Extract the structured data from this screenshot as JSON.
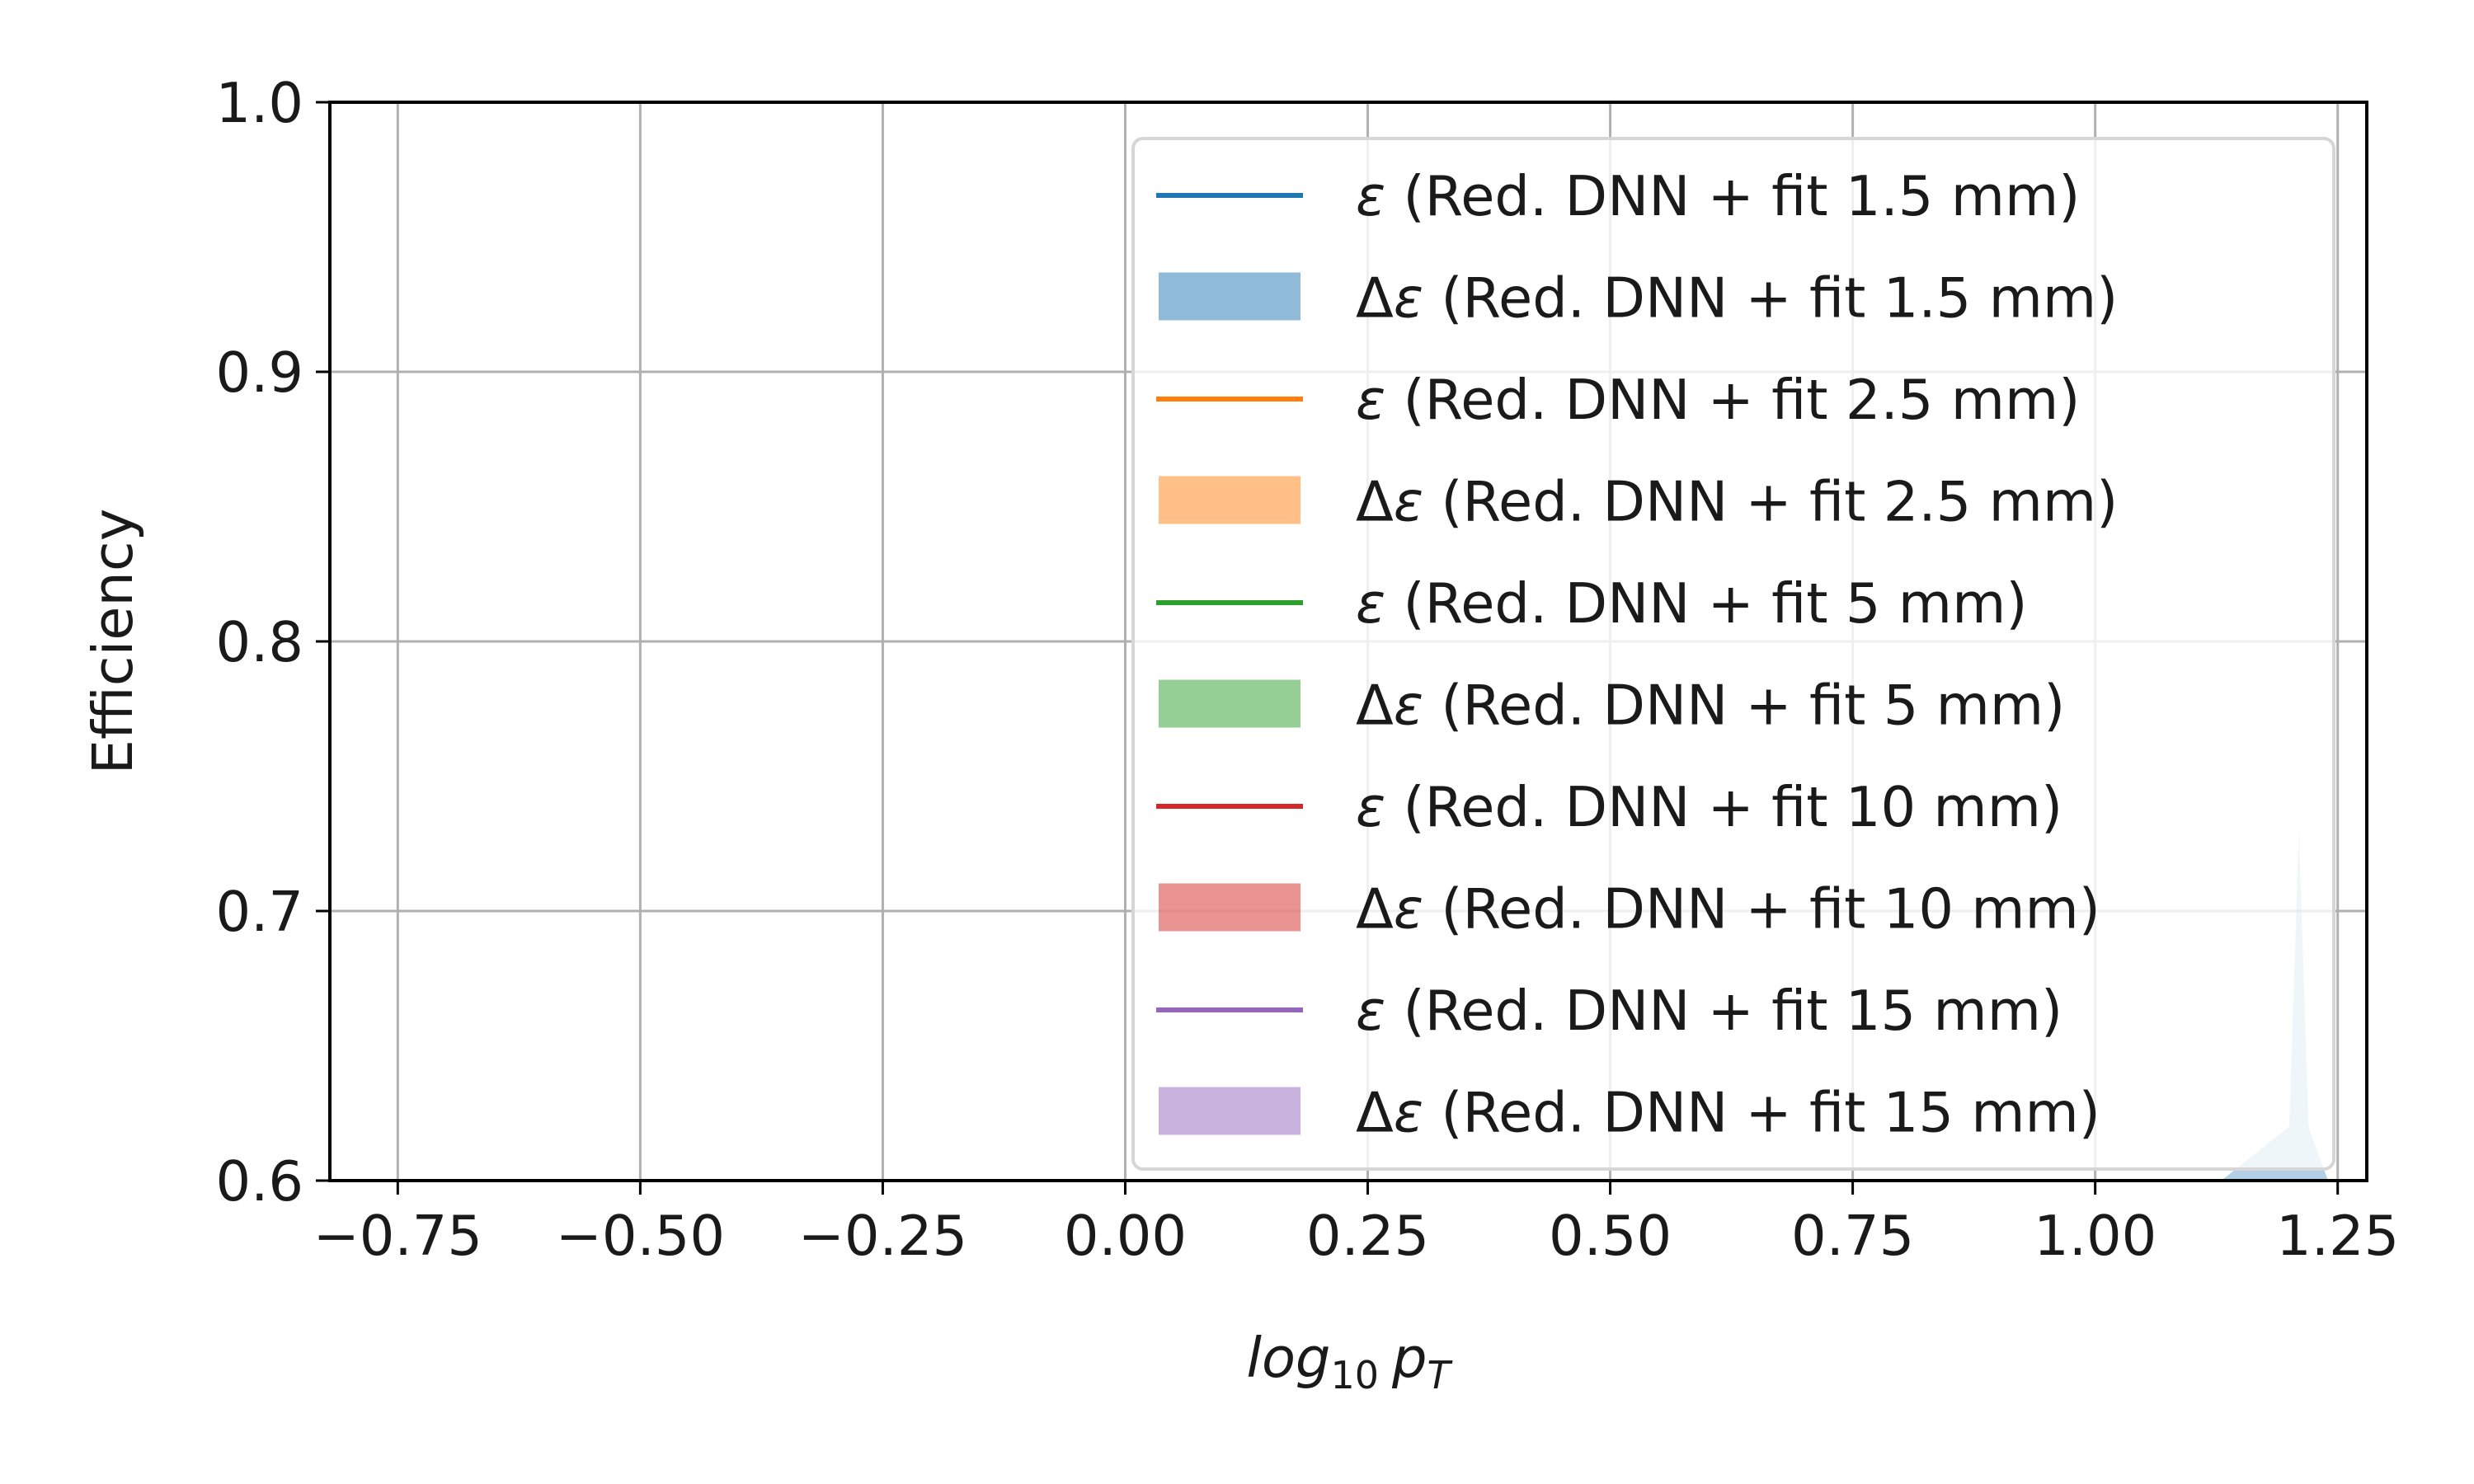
{
  "colors": {
    "blue": "#1f77b4",
    "orange": "#ff7f0e",
    "green": "#2ca02c",
    "red": "#d62728",
    "purple": "#9467bd",
    "grid": "#b0b0b0"
  },
  "chart_data": {
    "type": "line",
    "xlabel_main": "log",
    "xlabel_sub": "10",
    "xlabel_var": "p",
    "xlabel_var_sub": "T",
    "ylabel": "Efficiency",
    "xlim": [
      -0.82,
      1.28
    ],
    "ylim": [
      0.6,
      1.0
    ],
    "grid": true,
    "legend_placement": "upper-right",
    "x_ticks": [
      -0.75,
      -0.5,
      -0.25,
      0.0,
      0.25,
      0.5,
      0.75,
      1.0,
      1.25
    ],
    "x_tick_labels": [
      "−0.75",
      "−0.50",
      "−0.25",
      "0.00",
      "0.25",
      "0.50",
      "0.75",
      "1.00",
      "1.25"
    ],
    "y_ticks": [
      0.6,
      0.7,
      0.8,
      0.9,
      1.0
    ],
    "y_tick_labels": [
      "0.6",
      "0.7",
      "0.8",
      "0.9",
      "1.0"
    ],
    "series": [
      {
        "name": " (Red. DNN + fit 1.5 mm)",
        "kind": "line",
        "color": "#1f77b4",
        "x": [],
        "y": []
      },
      {
        "name": " (Red. DNN + fit 1.5 mm)",
        "kind": "band",
        "color": "#1f77b4",
        "x": [],
        "y_low": [],
        "y_high": []
      },
      {
        "name": " (Red. DNN + fit 2.5 mm)",
        "kind": "line",
        "color": "#ff7f0e",
        "x": [],
        "y": []
      },
      {
        "name": " (Red. DNN + fit 2.5 mm)",
        "kind": "band",
        "color": "#ff7f0e",
        "x": [],
        "y_low": [],
        "y_high": []
      },
      {
        "name": " (Red. DNN + fit 5 mm)",
        "kind": "line",
        "color": "#2ca02c",
        "x": [],
        "y": []
      },
      {
        "name": " (Red. DNN + fit 5 mm)",
        "kind": "band",
        "color": "#2ca02c",
        "x": [],
        "y_low": [],
        "y_high": []
      },
      {
        "name": " (Red. DNN + fit 10 mm)",
        "kind": "line",
        "color": "#d62728",
        "x": [],
        "y": []
      },
      {
        "name": " (Red. DNN + fit 10 mm)",
        "kind": "band",
        "color": "#d62728",
        "x": [],
        "y_low": [],
        "y_high": []
      },
      {
        "name": " (Red. DNN + fit 15 mm)",
        "kind": "line",
        "color": "#9467bd",
        "x": [],
        "y": []
      },
      {
        "name": " (Red. DNN + fit 15 mm)",
        "kind": "band",
        "color": "#9467bd",
        "x": [],
        "y_low": [],
        "y_high": []
      }
    ],
    "visible_band_fragment": {
      "color": "#1f77b4",
      "x": [
        1.13,
        1.2,
        1.21,
        1.22,
        1.24
      ],
      "y_low": [
        0.6,
        0.6,
        0.6,
        0.6,
        0.6
      ],
      "y_high": [
        0.6,
        0.62,
        0.73,
        0.62,
        0.6
      ]
    }
  }
}
